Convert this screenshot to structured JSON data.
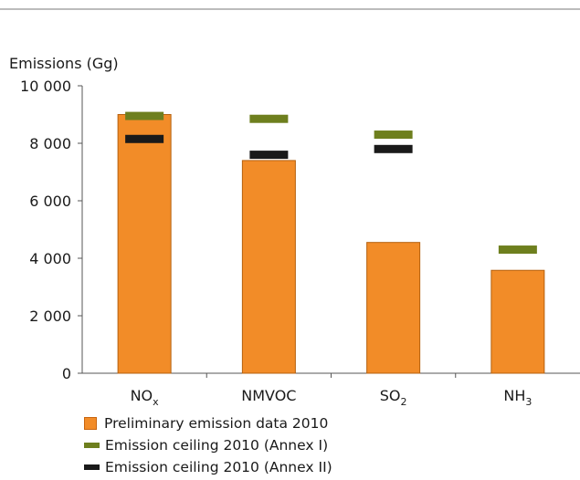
{
  "chart_data": {
    "type": "bar",
    "ylabel": "Emissions (Gg)",
    "ylim": [
      0,
      10000
    ],
    "yticks": [
      0,
      2000,
      4000,
      6000,
      8000,
      10000
    ],
    "ytick_labels": [
      "0",
      "2 000",
      "4 000",
      "6 000",
      "8 000",
      "10 000"
    ],
    "categories": [
      "NOx",
      "NMVOC",
      "SO2",
      "NH3"
    ],
    "category_labels": [
      {
        "main": "NO",
        "sub": "x"
      },
      {
        "main": "NMVOC",
        "sub": ""
      },
      {
        "main": "SO",
        "sub": "2"
      },
      {
        "main": "NH",
        "sub": "3"
      }
    ],
    "series": [
      {
        "name": "Preliminary emission data 2010",
        "kind": "bar",
        "color": "#f28c28",
        "values": [
          9000,
          7400,
          4550,
          3580
        ]
      },
      {
        "name": "Emission ceiling 2010 (Annex I)",
        "kind": "marker",
        "color": "#6e7f1e",
        "values": [
          8950,
          8850,
          8300,
          4300
        ]
      },
      {
        "name": "Emission ceiling 2010 (Annex II)",
        "kind": "marker",
        "color": "#1a1a1a",
        "values": [
          8150,
          7600,
          7800,
          null
        ]
      }
    ],
    "grid": false,
    "legend_position": "bottom"
  }
}
